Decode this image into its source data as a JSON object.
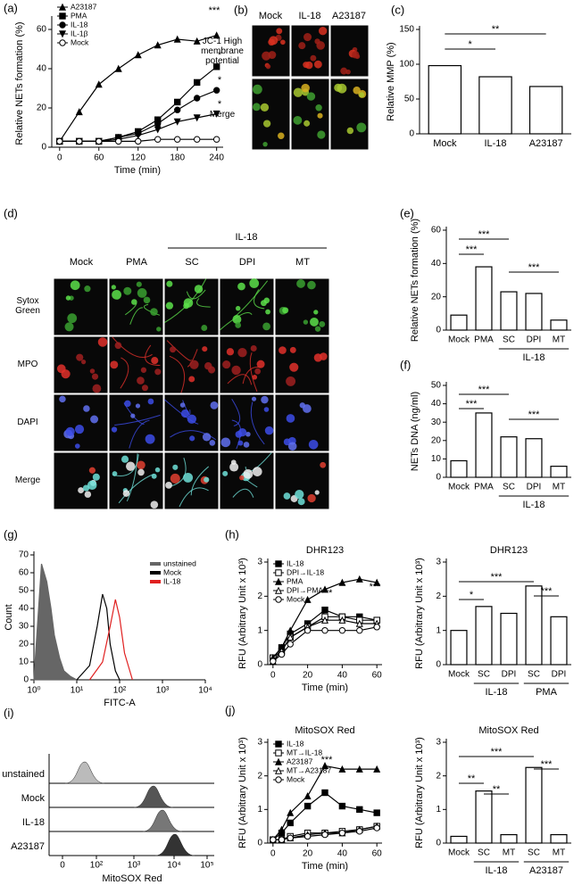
{
  "chart_data": [
    {
      "panel": "(a)",
      "type": "line",
      "ylabel": "Relative NETs formation (%)",
      "xlabel": "Time (min)",
      "x": [
        0,
        30,
        60,
        90,
        120,
        150,
        180,
        210,
        240
      ],
      "xlim": [
        -12,
        250
      ],
      "xticks": [
        0,
        60,
        120,
        180,
        240
      ],
      "ylim": [
        0,
        65
      ],
      "yticks": [
        0,
        20,
        40,
        60
      ],
      "legend": "upper left",
      "series": [
        {
          "name": "A23187",
          "color": "#000000",
          "marker": "triangle",
          "values": [
            3,
            18,
            32,
            40,
            47,
            52,
            55,
            54,
            57
          ]
        },
        {
          "name": "PMA",
          "color": "#000000",
          "marker": "square",
          "values": [
            3,
            3,
            3,
            5,
            8,
            14,
            23,
            33,
            41
          ]
        },
        {
          "name": "IL-18",
          "color": "#000000",
          "marker": "circle",
          "values": [
            3,
            3,
            3,
            5,
            7,
            12,
            19,
            25,
            29
          ]
        },
        {
          "name": "IL-1β",
          "color": "#000000",
          "marker": "triangle-down",
          "values": [
            3,
            3,
            3,
            4,
            6,
            9,
            13,
            15,
            17
          ]
        },
        {
          "name": "Mock",
          "color": "#000000",
          "marker": "circle-open",
          "values": [
            3,
            3,
            3,
            3,
            3,
            4,
            4,
            4,
            4
          ]
        }
      ],
      "annotations": [
        "***",
        "*",
        "*",
        "*"
      ]
    },
    {
      "panel": "(c)",
      "type": "bar",
      "ylabel": "Relative MMP (%)",
      "categories": [
        "Mock",
        "IL-18",
        "A23187"
      ],
      "values": [
        98,
        82,
        68
      ],
      "color": "#ffffff",
      "ylim": [
        0,
        150
      ],
      "yticks": [
        0,
        50,
        100,
        150
      ],
      "annotations": [
        "*",
        "**"
      ]
    },
    {
      "panel": "(e)",
      "type": "bar",
      "ylabel": "Relative NETs formation (%)",
      "categories": [
        "Mock",
        "PMA",
        "SC",
        "DPI",
        "MT"
      ],
      "values": [
        9,
        38,
        23,
        22,
        6
      ],
      "color": "#ffffff",
      "ylim": [
        0,
        60
      ],
      "yticks": [
        0,
        20,
        40,
        60
      ],
      "group_labels": [
        "IL-18"
      ],
      "annotations": [
        "***",
        "***",
        "***"
      ]
    },
    {
      "panel": "(f)",
      "type": "bar",
      "ylabel": "NETs DNA (ng/ml)",
      "categories": [
        "Mock",
        "PMA",
        "SC",
        "DPI",
        "MT"
      ],
      "values": [
        9,
        35,
        22,
        21,
        6
      ],
      "color": "#ffffff",
      "ylim": [
        0,
        50
      ],
      "yticks": [
        0,
        10,
        20,
        30,
        40,
        50
      ],
      "group_labels": [
        "IL-18"
      ],
      "annotations": [
        "***",
        "***",
        "***"
      ]
    },
    {
      "panel": "(g)",
      "type": "line",
      "ylabel": "Count",
      "xlabel": "FITC-A",
      "xscale": "log",
      "xlim": [
        1,
        10000
      ],
      "xticks": [
        {
          "value": 1,
          "label": "10⁰"
        },
        {
          "value": 10,
          "label": "10¹"
        },
        {
          "value": 100,
          "label": "10²"
        },
        {
          "value": 1000,
          "label": "10³"
        },
        {
          "value": 10000,
          "label": "10⁴"
        }
      ],
      "ylim": [
        0,
        70
      ],
      "yticks": [
        0,
        10,
        20,
        30,
        40,
        50,
        60,
        70
      ],
      "legend": "upper right",
      "series": [
        {
          "name": "unstained",
          "color": "#666666",
          "area": true,
          "x": [
            1,
            1.5,
            2,
            2.5,
            3,
            4,
            5,
            7,
            10
          ],
          "values": [
            0,
            65,
            55,
            40,
            25,
            12,
            5,
            2,
            0
          ]
        },
        {
          "name": "Mock",
          "color": "#000000",
          "x": [
            10,
            20,
            30,
            40,
            50,
            60,
            80,
            100
          ],
          "values": [
            0,
            8,
            30,
            48,
            40,
            20,
            5,
            0
          ]
        },
        {
          "name": "IL-18",
          "color": "#e02020",
          "x": [
            20,
            40,
            60,
            80,
            100,
            130,
            200
          ],
          "values": [
            0,
            10,
            30,
            45,
            35,
            15,
            0
          ]
        }
      ]
    },
    {
      "panel": "(h)",
      "type": "line",
      "title": "DHR123",
      "ylabel": "RFU (Arbitrary Unit x 10³)",
      "xlabel": "Time (min)",
      "x": [
        0,
        5,
        10,
        20,
        30,
        40,
        50,
        60
      ],
      "xlim": [
        -3,
        63
      ],
      "xticks": [
        0,
        20,
        40,
        60
      ],
      "ylim": [
        0,
        3
      ],
      "yticks": [
        0,
        1,
        2,
        3
      ],
      "legend": "upper left",
      "series": [
        {
          "name": "IL-18",
          "color": "#000000",
          "marker": "square",
          "values": [
            0.2,
            0.5,
            0.9,
            1.2,
            1.6,
            1.4,
            1.4,
            1.3
          ]
        },
        {
          "name": "DPI→IL-18",
          "color": "#000000",
          "marker": "square-open",
          "values": [
            0.2,
            0.4,
            0.8,
            1.1,
            1.4,
            1.4,
            1.3,
            1.3
          ]
        },
        {
          "name": "PMA",
          "color": "#000000",
          "marker": "triangle",
          "values": [
            0.2,
            0.5,
            1.0,
            1.9,
            2.2,
            2.4,
            2.5,
            2.4
          ]
        },
        {
          "name": "DPI→PMA",
          "color": "#000000",
          "marker": "triangle-open",
          "values": [
            0.1,
            0.4,
            0.8,
            1.1,
            1.3,
            1.3,
            1.2,
            1.2
          ]
        },
        {
          "name": "Mock",
          "color": "#000000",
          "marker": "circle-open",
          "values": [
            0.1,
            0.3,
            0.6,
            1.0,
            1.0,
            1.0,
            1.0,
            1.1
          ]
        }
      ],
      "annotations": [
        "***",
        "*",
        "***"
      ]
    },
    {
      "type": "bar",
      "title": "DHR123",
      "ylabel": "RFU (Arbitrary Unit x 10³)",
      "categories": [
        "Mock",
        "SC",
        "DPI",
        "SC",
        "DPI"
      ],
      "values": [
        1.0,
        1.7,
        1.5,
        2.3,
        1.4
      ],
      "color": "#ffffff",
      "ylim": [
        0,
        3
      ],
      "yticks": [
        0,
        1,
        2,
        3
      ],
      "group_labels": [
        "IL-18",
        "PMA"
      ],
      "annotations": [
        "*",
        "***",
        "***"
      ]
    },
    {
      "panel": "(j)",
      "type": "line",
      "title": "MitoSOX Red",
      "ylabel": "RFU (Arbitrary Unit x 10³)",
      "xlabel": "Time (min)",
      "x": [
        0,
        5,
        10,
        20,
        30,
        40,
        50,
        60
      ],
      "xlim": [
        -3,
        63
      ],
      "xticks": [
        0,
        20,
        40,
        60
      ],
      "ylim": [
        0,
        3
      ],
      "yticks": [
        0,
        1,
        2,
        3
      ],
      "legend": "upper left",
      "series": [
        {
          "name": "IL-18",
          "color": "#000000",
          "marker": "square",
          "values": [
            0.1,
            0.3,
            0.6,
            1.1,
            1.5,
            1.1,
            1.0,
            0.9
          ]
        },
        {
          "name": "MT→IL-18",
          "color": "#000000",
          "marker": "square-open",
          "values": [
            0.1,
            0.1,
            0.2,
            0.3,
            0.3,
            0.35,
            0.4,
            0.5
          ]
        },
        {
          "name": "A23187",
          "color": "#000000",
          "marker": "triangle",
          "values": [
            0.1,
            0.4,
            0.9,
            1.4,
            2.3,
            2.2,
            2.2,
            2.2
          ]
        },
        {
          "name": "MT→A23187",
          "color": "#000000",
          "marker": "triangle-open",
          "values": [
            0.1,
            0.1,
            0.15,
            0.25,
            0.3,
            0.3,
            0.4,
            0.5
          ]
        },
        {
          "name": "Mock",
          "color": "#000000",
          "marker": "circle-open",
          "values": [
            0.1,
            0.1,
            0.15,
            0.2,
            0.25,
            0.3,
            0.35,
            0.45
          ]
        }
      ],
      "annotations": [
        "***"
      ]
    },
    {
      "type": "bar",
      "title": "MitoSOX Red",
      "ylabel": "RFU (Arbitrary Unit x 10³)",
      "categories": [
        "Mock",
        "SC",
        "MT",
        "SC",
        "MT"
      ],
      "values": [
        0.2,
        1.55,
        0.25,
        2.25,
        0.25
      ],
      "color": "#ffffff",
      "ylim": [
        0,
        3
      ],
      "yticks": [
        0,
        1,
        2,
        3
      ],
      "group_labels": [
        "IL-18",
        "A23187"
      ],
      "annotations": [
        "**",
        "**",
        "***",
        "***"
      ]
    }
  ],
  "micrographs": [
    {
      "panel": "(b)",
      "columns": [
        "Mock",
        "IL-18",
        "A23187"
      ],
      "rows": [
        "JC-1 High membrane potential",
        "Merge"
      ]
    },
    {
      "panel": "(d)",
      "group_label": "IL-18",
      "columns": [
        "Mock",
        "PMA",
        "SC",
        "DPI",
        "MT"
      ],
      "rows": [
        "Sytox Green",
        "MPO",
        "DAPI",
        "Merge"
      ]
    }
  ],
  "flow": {
    "panel": "(i)",
    "rows": [
      "unstained",
      "Mock",
      "IL-18",
      "A23187"
    ],
    "xtick_labels": [
      "0",
      "10²",
      "10³",
      "10⁴",
      "10⁵"
    ],
    "xlabel": "MitoSOX Red"
  }
}
